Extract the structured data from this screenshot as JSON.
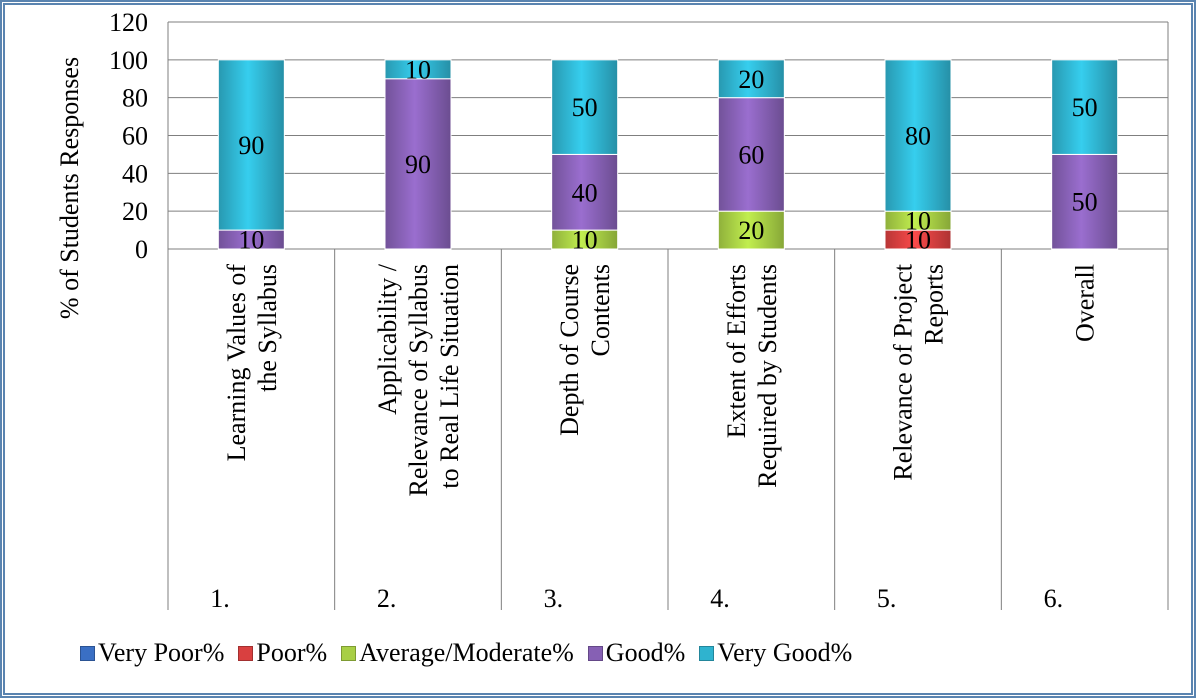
{
  "chart_data": {
    "type": "bar",
    "stacked": true,
    "title": "",
    "ylabel": "% of Students Responses",
    "xlabel": "",
    "ylim": [
      0,
      120
    ],
    "yticks": [
      0,
      20,
      40,
      60,
      80,
      100,
      120
    ],
    "grid": true,
    "legend_position": "bottom",
    "categories": [
      {
        "number": "1.",
        "label": [
          "Learning Values of",
          "the Syllabus"
        ]
      },
      {
        "number": "2.",
        "label": [
          "Applicability /",
          "Relevance of Syllabus",
          "to Real Life Situation"
        ]
      },
      {
        "number": "3.",
        "label": [
          "Depth of Course",
          "Contents"
        ]
      },
      {
        "number": "4.",
        "label": [
          "Extent of Efforts",
          "Required by Students"
        ]
      },
      {
        "number": "5.",
        "label": [
          "Relevance of Project",
          "Reports"
        ]
      },
      {
        "number": "6.",
        "label": [
          "Overall"
        ]
      }
    ],
    "series": [
      {
        "name": "Very Poor%",
        "color": "#3a6fc4",
        "values": [
          0,
          0,
          0,
          0,
          0,
          0
        ]
      },
      {
        "name": "Poor%",
        "color": "#d94040",
        "values": [
          0,
          0,
          0,
          0,
          10,
          0
        ]
      },
      {
        "name": "Average/Moderate%",
        "color": "#a8cf45",
        "values": [
          0,
          0,
          10,
          20,
          10,
          0
        ]
      },
      {
        "name": "Good%",
        "color": "#8660b4",
        "values": [
          10,
          90,
          40,
          60,
          0,
          50
        ]
      },
      {
        "name": "Very Good%",
        "color": "#2fb3cf",
        "values": [
          90,
          10,
          50,
          20,
          80,
          50
        ]
      }
    ]
  }
}
